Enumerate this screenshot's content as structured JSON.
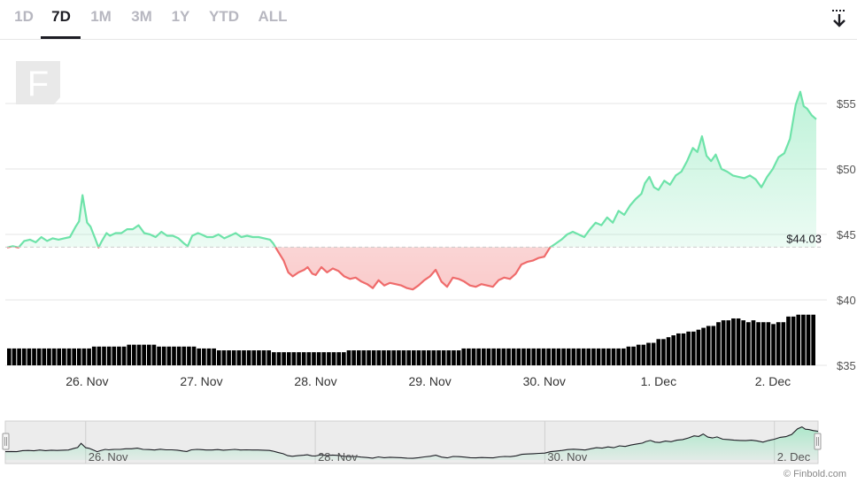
{
  "range_tabs": [
    {
      "label": "1D",
      "active": false
    },
    {
      "label": "7D",
      "active": true
    },
    {
      "label": "1M",
      "active": false
    },
    {
      "label": "3M",
      "active": false
    },
    {
      "label": "1Y",
      "active": false
    },
    {
      "label": "YTD",
      "active": false
    },
    {
      "label": "ALL",
      "active": false
    }
  ],
  "icons": {
    "download": "download-arrow-icon",
    "watermark": "finbold-f-logo"
  },
  "credit": "© Finbold.com",
  "colors": {
    "up": "#6ee3a9",
    "down": "#ef6b6b",
    "volume": "#000000",
    "grid": "#e6e6e6",
    "baseline": "#cccccc"
  },
  "chart_data": {
    "type": "line",
    "title": "",
    "xlabel": "",
    "ylabel": "",
    "ylim": [
      35,
      57.5
    ],
    "y_ticks": [
      "$35",
      "$40",
      "$45",
      "$50",
      "$55"
    ],
    "y_tick_values": [
      35,
      40,
      45,
      50,
      55
    ],
    "x_ticks": [
      "26. Nov",
      "27. Nov",
      "28. Nov",
      "29. Nov",
      "30. Nov",
      "1. Dec",
      "2. Dec"
    ],
    "x_tick_days": [
      1,
      2,
      3,
      4,
      5,
      6,
      7
    ],
    "x_range_days": [
      0.3,
      7.38
    ],
    "baseline": {
      "value": 44.03,
      "label": "$44.03"
    },
    "grid": true,
    "price": [
      [
        0.3,
        44.0
      ],
      [
        0.35,
        44.1
      ],
      [
        0.4,
        44.0
      ],
      [
        0.45,
        44.5
      ],
      [
        0.5,
        44.6
      ],
      [
        0.55,
        44.4
      ],
      [
        0.6,
        44.8
      ],
      [
        0.65,
        44.5
      ],
      [
        0.7,
        44.7
      ],
      [
        0.75,
        44.6
      ],
      [
        0.8,
        44.7
      ],
      [
        0.85,
        44.8
      ],
      [
        0.9,
        45.6
      ],
      [
        0.93,
        46.0
      ],
      [
        0.96,
        48.0
      ],
      [
        1.0,
        45.9
      ],
      [
        1.03,
        45.6
      ],
      [
        1.07,
        44.7
      ],
      [
        1.1,
        44.0
      ],
      [
        1.13,
        44.5
      ],
      [
        1.17,
        45.1
      ],
      [
        1.2,
        44.9
      ],
      [
        1.25,
        45.1
      ],
      [
        1.3,
        45.1
      ],
      [
        1.35,
        45.4
      ],
      [
        1.4,
        45.4
      ],
      [
        1.45,
        45.7
      ],
      [
        1.5,
        45.1
      ],
      [
        1.55,
        45.0
      ],
      [
        1.6,
        44.8
      ],
      [
        1.65,
        45.2
      ],
      [
        1.7,
        44.9
      ],
      [
        1.75,
        44.9
      ],
      [
        1.8,
        44.7
      ],
      [
        1.85,
        44.3
      ],
      [
        1.88,
        44.1
      ],
      [
        1.92,
        44.9
      ],
      [
        1.97,
        45.1
      ],
      [
        2.0,
        45.0
      ],
      [
        2.05,
        44.8
      ],
      [
        2.1,
        44.8
      ],
      [
        2.15,
        45.0
      ],
      [
        2.2,
        44.7
      ],
      [
        2.25,
        44.9
      ],
      [
        2.3,
        45.1
      ],
      [
        2.35,
        44.8
      ],
      [
        2.4,
        44.9
      ],
      [
        2.45,
        44.8
      ],
      [
        2.5,
        44.8
      ],
      [
        2.55,
        44.7
      ],
      [
        2.6,
        44.6
      ],
      [
        2.63,
        44.3
      ],
      [
        2.67,
        43.7
      ],
      [
        2.72,
        43.0
      ],
      [
        2.76,
        42.1
      ],
      [
        2.8,
        41.8
      ],
      [
        2.85,
        42.1
      ],
      [
        2.9,
        42.3
      ],
      [
        2.93,
        42.5
      ],
      [
        2.97,
        42.0
      ],
      [
        3.0,
        41.9
      ],
      [
        3.05,
        42.5
      ],
      [
        3.1,
        42.1
      ],
      [
        3.15,
        42.4
      ],
      [
        3.2,
        42.2
      ],
      [
        3.25,
        41.8
      ],
      [
        3.3,
        41.6
      ],
      [
        3.35,
        41.7
      ],
      [
        3.4,
        41.4
      ],
      [
        3.45,
        41.2
      ],
      [
        3.5,
        40.9
      ],
      [
        3.55,
        41.5
      ],
      [
        3.6,
        41.1
      ],
      [
        3.65,
        41.3
      ],
      [
        3.7,
        41.2
      ],
      [
        3.75,
        41.1
      ],
      [
        3.8,
        40.9
      ],
      [
        3.85,
        40.8
      ],
      [
        3.9,
        41.1
      ],
      [
        3.95,
        41.5
      ],
      [
        4.0,
        41.8
      ],
      [
        4.05,
        42.3
      ],
      [
        4.1,
        41.4
      ],
      [
        4.15,
        41.0
      ],
      [
        4.2,
        41.7
      ],
      [
        4.25,
        41.6
      ],
      [
        4.3,
        41.4
      ],
      [
        4.35,
        41.1
      ],
      [
        4.4,
        41.0
      ],
      [
        4.45,
        41.2
      ],
      [
        4.5,
        41.1
      ],
      [
        4.55,
        41.0
      ],
      [
        4.6,
        41.5
      ],
      [
        4.65,
        41.7
      ],
      [
        4.7,
        41.6
      ],
      [
        4.75,
        42.0
      ],
      [
        4.8,
        42.7
      ],
      [
        4.85,
        42.9
      ],
      [
        4.9,
        43.0
      ],
      [
        4.95,
        43.2
      ],
      [
        5.0,
        43.3
      ],
      [
        5.05,
        44.0
      ],
      [
        5.1,
        44.3
      ],
      [
        5.15,
        44.6
      ],
      [
        5.2,
        45.0
      ],
      [
        5.25,
        45.2
      ],
      [
        5.3,
        45.0
      ],
      [
        5.35,
        44.8
      ],
      [
        5.4,
        45.4
      ],
      [
        5.45,
        45.9
      ],
      [
        5.5,
        45.7
      ],
      [
        5.55,
        46.3
      ],
      [
        5.6,
        45.9
      ],
      [
        5.65,
        46.8
      ],
      [
        5.7,
        46.5
      ],
      [
        5.75,
        47.2
      ],
      [
        5.8,
        47.7
      ],
      [
        5.85,
        48.1
      ],
      [
        5.88,
        48.9
      ],
      [
        5.92,
        49.4
      ],
      [
        5.96,
        48.6
      ],
      [
        6.0,
        48.4
      ],
      [
        6.05,
        49.1
      ],
      [
        6.1,
        48.8
      ],
      [
        6.15,
        49.5
      ],
      [
        6.2,
        49.8
      ],
      [
        6.25,
        50.6
      ],
      [
        6.3,
        51.6
      ],
      [
        6.34,
        51.3
      ],
      [
        6.38,
        52.5
      ],
      [
        6.42,
        51.0
      ],
      [
        6.46,
        50.6
      ],
      [
        6.5,
        51.1
      ],
      [
        6.55,
        50.0
      ],
      [
        6.6,
        49.8
      ],
      [
        6.65,
        49.5
      ],
      [
        6.7,
        49.4
      ],
      [
        6.75,
        49.3
      ],
      [
        6.8,
        49.5
      ],
      [
        6.85,
        49.2
      ],
      [
        6.9,
        48.6
      ],
      [
        6.95,
        49.4
      ],
      [
        7.0,
        50.0
      ],
      [
        7.05,
        50.9
      ],
      [
        7.1,
        51.2
      ],
      [
        7.15,
        52.3
      ],
      [
        7.2,
        54.9
      ],
      [
        7.24,
        55.9
      ],
      [
        7.27,
        54.8
      ],
      [
        7.3,
        54.6
      ],
      [
        7.34,
        54.1
      ],
      [
        7.38,
        53.8
      ]
    ],
    "volume": [
      9,
      9,
      9,
      9,
      9,
      9,
      9,
      9,
      9,
      9,
      9,
      9,
      9,
      9,
      9,
      9,
      9,
      10,
      10,
      10,
      10,
      10,
      10,
      10,
      11,
      11,
      11,
      11,
      11,
      11,
      10,
      10,
      10,
      10,
      10,
      10,
      10,
      10,
      9,
      9,
      9,
      9,
      8,
      8,
      8,
      8,
      8,
      8,
      8,
      8,
      8,
      8,
      8,
      7,
      7,
      7,
      7,
      7,
      7,
      7,
      7,
      7,
      7,
      7,
      7,
      7,
      7,
      7,
      8,
      8,
      8,
      8,
      8,
      8,
      8,
      8,
      8,
      8,
      8,
      8,
      8,
      8,
      8,
      8,
      8,
      8,
      8,
      8,
      8,
      8,
      8,
      9,
      9,
      9,
      9,
      9,
      9,
      9,
      9,
      9,
      9,
      9,
      9,
      9,
      9,
      9,
      9,
      9,
      9,
      9,
      9,
      9,
      9,
      9,
      9,
      9,
      9,
      9,
      9,
      9,
      9,
      9,
      9,
      9,
      10,
      10,
      11,
      11,
      12,
      12,
      14,
      14,
      15,
      16,
      17,
      17,
      18,
      18,
      19,
      20,
      21,
      21,
      23,
      24,
      24,
      25,
      25,
      24,
      23,
      24,
      23,
      23,
      23,
      22,
      23,
      23,
      26,
      26,
      27,
      27,
      27,
      27
    ],
    "volume_max": 33,
    "navigator": {
      "x_ticks": [
        "26. Nov",
        "28. Nov",
        "30. Nov",
        "2. Dec"
      ],
      "x_tick_days": [
        1,
        3,
        5,
        7
      ],
      "window_days": [
        0.3,
        7.38
      ]
    }
  }
}
